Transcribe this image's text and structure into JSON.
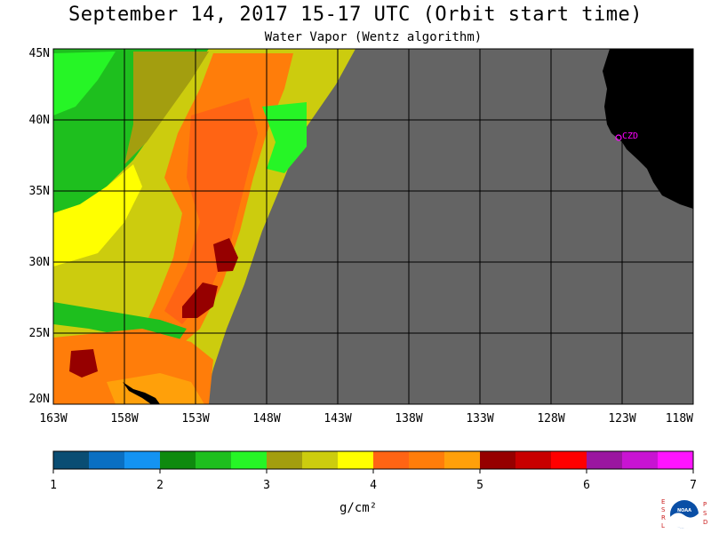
{
  "title": "September 14, 2017  15-17 UTC  (Orbit start time)",
  "subtitle": "Water Vapor (Wentz algorithm)",
  "lat_labels": [
    "45N",
    "40N",
    "35N",
    "30N",
    "25N",
    "20N"
  ],
  "lon_labels": [
    "163W",
    "158W",
    "153W",
    "148W",
    "143W",
    "138W",
    "133W",
    "128W",
    "123W",
    "118W"
  ],
  "station_label": "CZD",
  "colorbar": {
    "colors": [
      "#0a4d73",
      "#0a6fc2",
      "#1493f2",
      "#0e8a0e",
      "#1ebf1e",
      "#26f526",
      "#a39e0f",
      "#cccc0e",
      "#ffff00",
      "#ff6414",
      "#ff7d0a",
      "#ffa00a",
      "#960000",
      "#c80000",
      "#ff0000",
      "#9a16a0",
      "#c814d2",
      "#ff14ff"
    ],
    "tick_labels": [
      "1",
      "2",
      "3",
      "4",
      "5",
      "6",
      "7"
    ],
    "unit": "g/cm²"
  },
  "colors": {
    "no_data": "#646464",
    "land": "#000000",
    "grid": "#000000",
    "station": "#ff00ff"
  },
  "logo_text": {
    "left": "ESRL",
    "right": "PSD",
    "center": "NOAA"
  }
}
